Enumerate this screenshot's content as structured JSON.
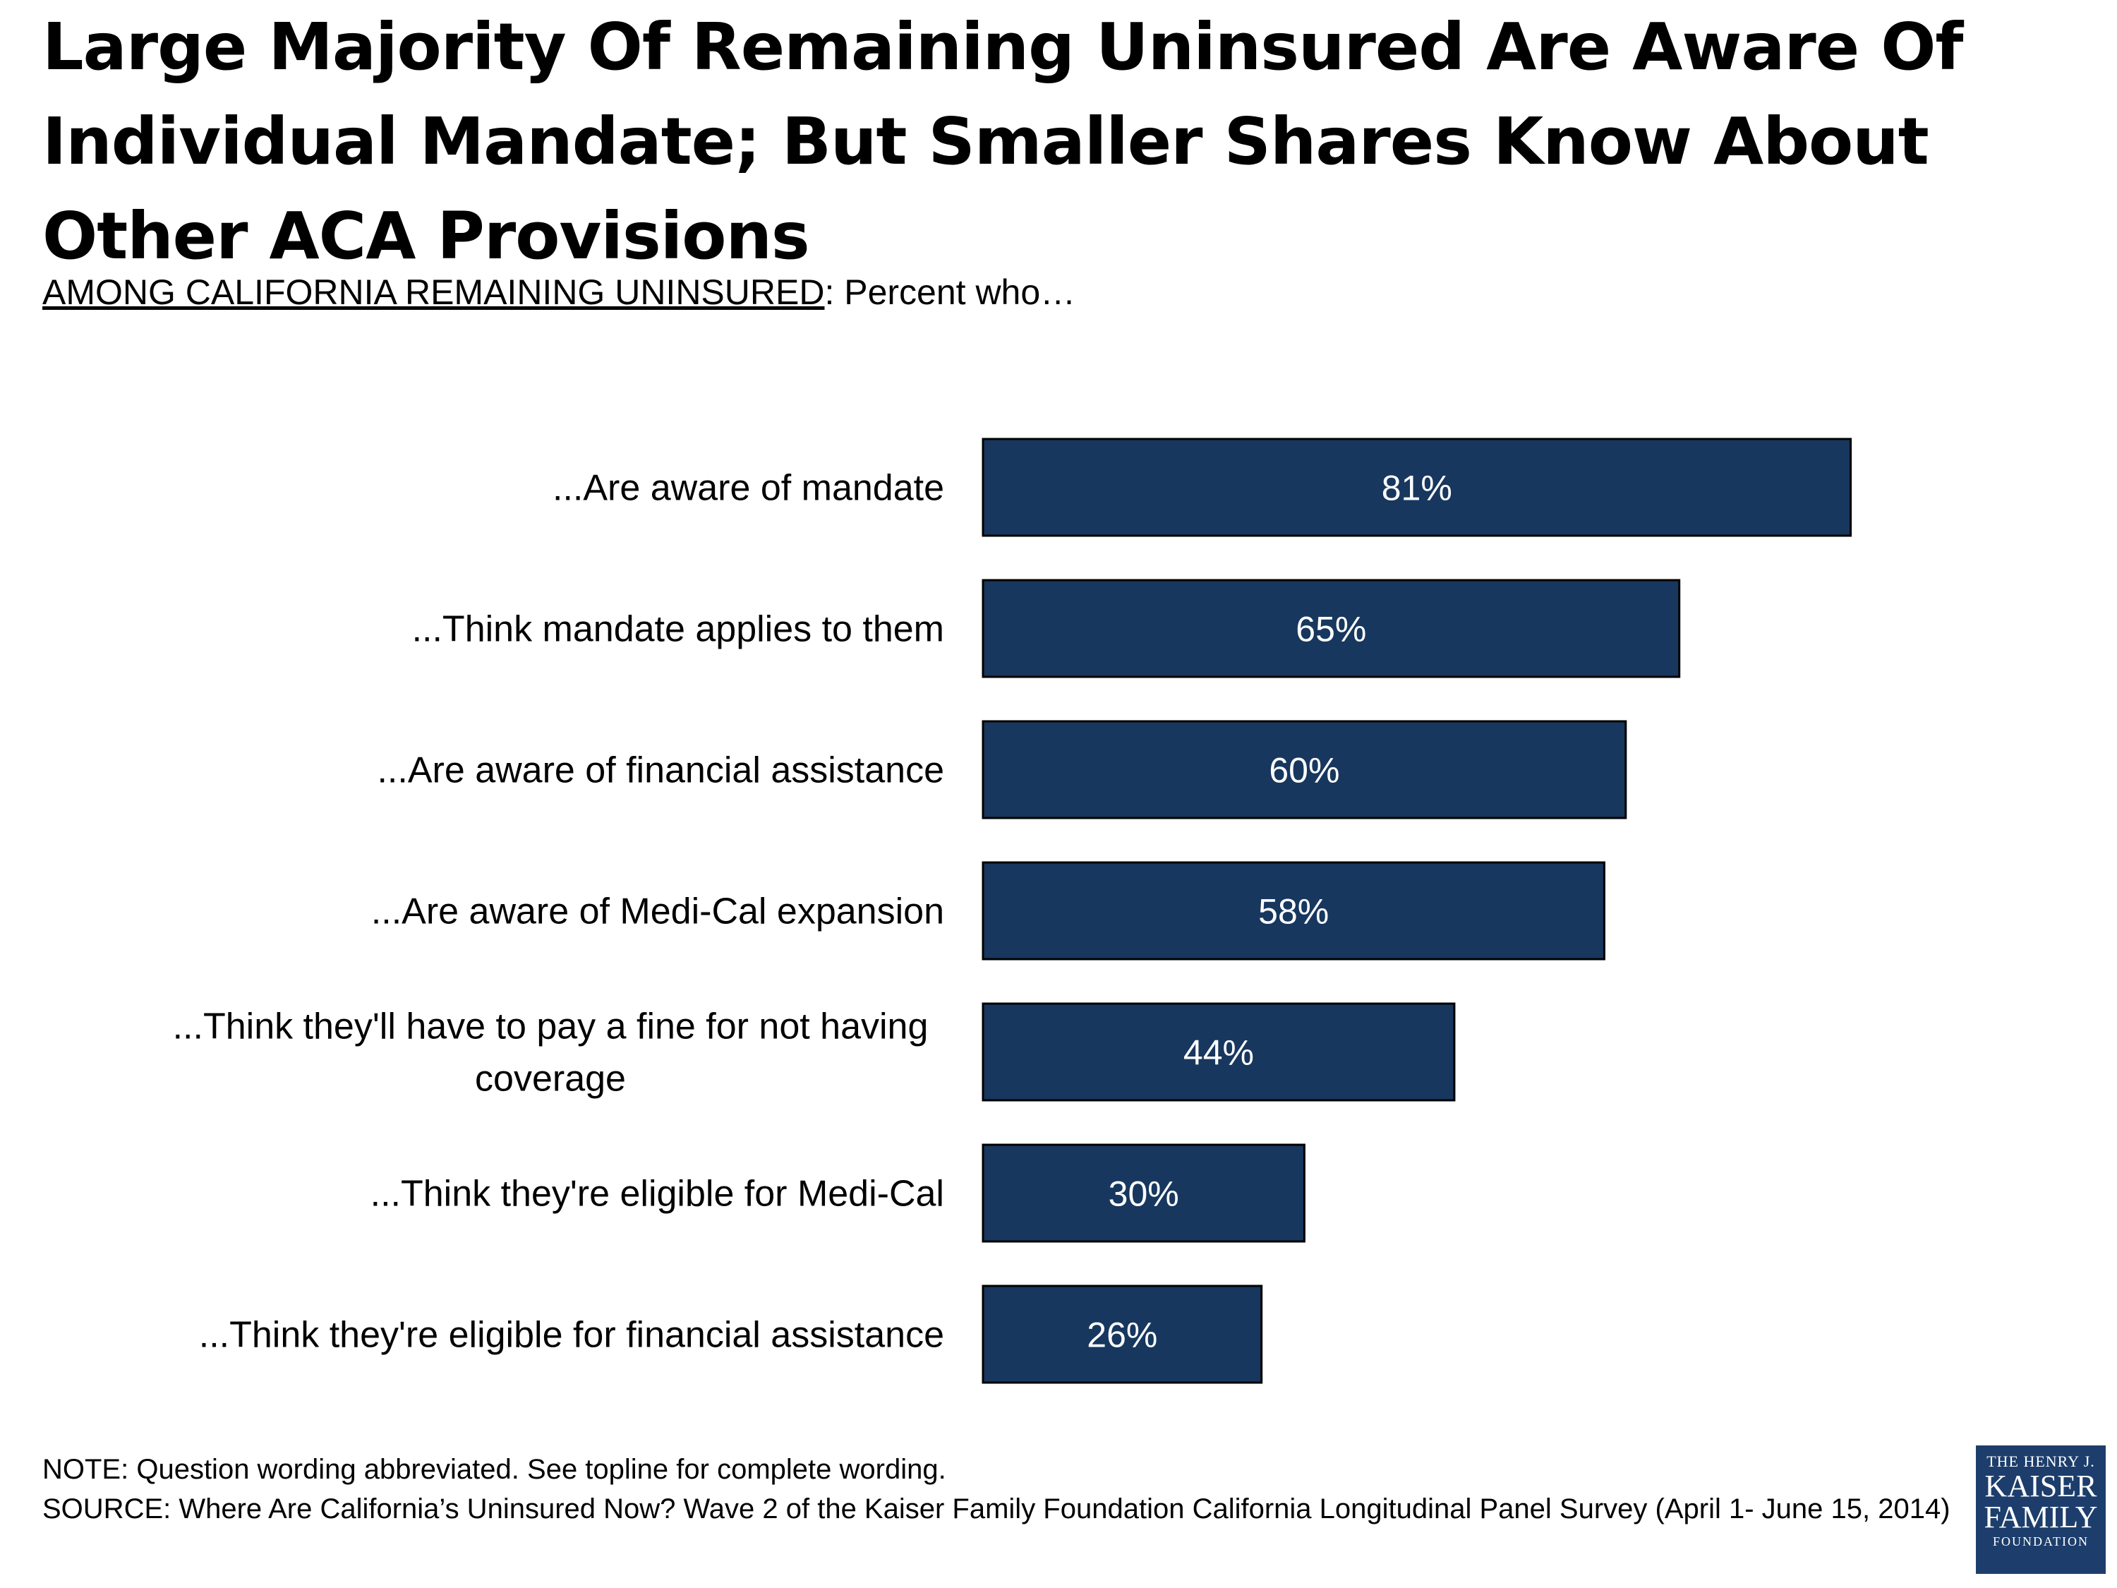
{
  "title": "Large Majority Of Remaining Uninsured Are Aware Of Individual Mandate; But Smaller Shares Know About Other ACA Provisions",
  "subtitle": {
    "lead": "AMONG CALIFORNIA REMAINING UNINSURED",
    "rest": ": Percent who…"
  },
  "chart_data": {
    "type": "bar",
    "orientation": "horizontal",
    "categories": [
      "...Are aware of mandate",
      "...Think mandate applies to them",
      "...Are aware of financial assistance",
      "...Are aware of Medi-Cal expansion",
      "...Think they'll have to pay a fine for not having coverage",
      "...Think they're eligible for Medi-Cal",
      "...Think they're eligible for financial assistance"
    ],
    "category_lines": [
      [
        "...Are aware of mandate"
      ],
      [
        "...Think mandate applies to them"
      ],
      [
        "...Are aware of financial assistance"
      ],
      [
        "...Are aware of Medi-Cal expansion"
      ],
      [
        "...Think they'll have to pay a fine for not having",
        "coverage"
      ],
      [
        "...Think they're eligible for Medi-Cal"
      ],
      [
        "...Think they're eligible for financial assistance"
      ]
    ],
    "values": [
      81,
      65,
      60,
      58,
      44,
      30,
      26
    ],
    "value_labels": [
      "81%",
      "65%",
      "60%",
      "58%",
      "44%",
      "30%",
      "26%"
    ],
    "xlim": [
      0,
      100
    ],
    "unit": "%",
    "bar_color": "#17375e",
    "grid": false,
    "legend": "none"
  },
  "notes": {
    "note": "NOTE: Question wording abbreviated. See topline for complete wording.",
    "source": "SOURCE: Where Are California’s Uninsured Now? Wave 2 of the Kaiser Family Foundation California Longitudinal Panel Survey (April 1- June 15, 2014)"
  },
  "logo": {
    "line1": "THE HENRY J.",
    "line2": "KAISER",
    "line3": "FAMILY",
    "line4": "FOUNDATION",
    "color": "#1d3e6c"
  }
}
